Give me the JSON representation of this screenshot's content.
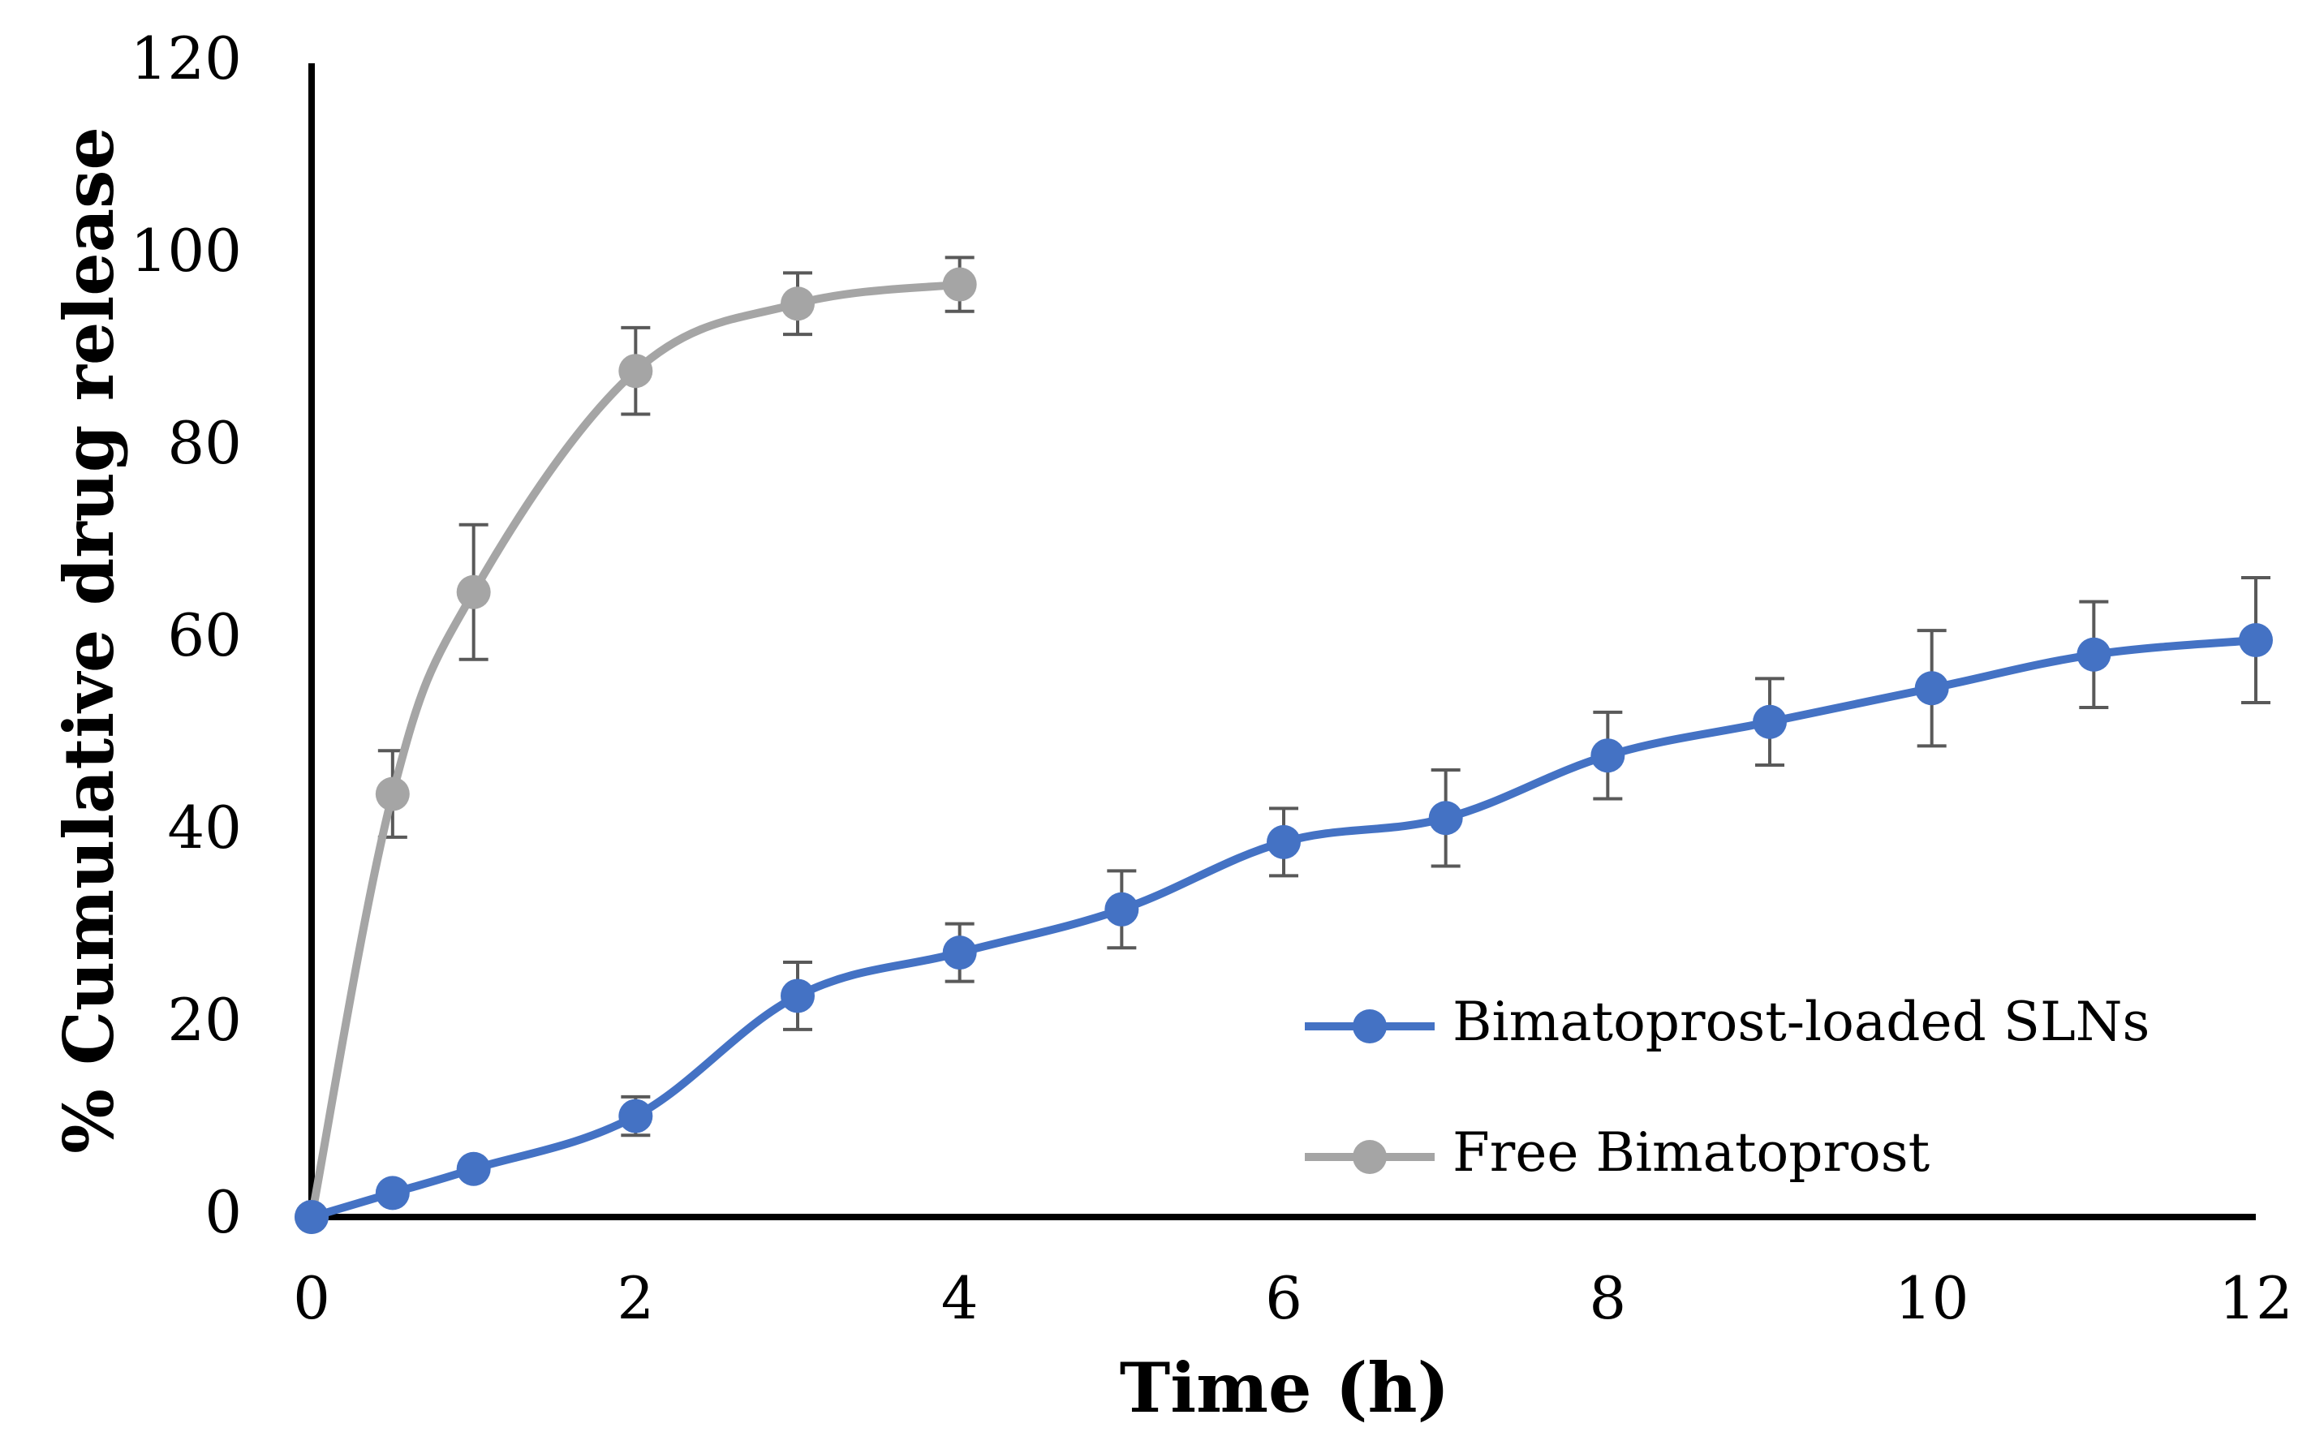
{
  "chart_data": {
    "type": "line",
    "title": "",
    "xlabel": "Time (h)",
    "ylabel": "% Cumulative drug release",
    "xlim": [
      0,
      12
    ],
    "ylim": [
      0,
      120
    ],
    "xticks": [
      0,
      2,
      4,
      6,
      8,
      10,
      12
    ],
    "yticks": [
      0,
      20,
      40,
      60,
      80,
      100,
      120
    ],
    "grid": false,
    "legend_position": "bottom-right",
    "series": [
      {
        "name": "Bimatoprost-loaded SLNs",
        "color": "#4472C4",
        "x": [
          0,
          0.5,
          1,
          2,
          3,
          4,
          5,
          6,
          7,
          8,
          9,
          10,
          11,
          12
        ],
        "y": [
          0,
          2.5,
          5,
          10.5,
          23,
          27.5,
          32,
          39,
          41.5,
          48,
          51.5,
          55,
          58.5,
          60
        ],
        "error": [
          0,
          0,
          0,
          2,
          3.5,
          3,
          4,
          3.5,
          5,
          4.5,
          4.5,
          6,
          5.5,
          6.5
        ]
      },
      {
        "name": "Free Bimatoprost",
        "color": "#A5A5A5",
        "x": [
          0,
          0.5,
          1,
          2,
          3,
          4
        ],
        "y": [
          0,
          44,
          65,
          88,
          95,
          97
        ],
        "error": [
          0,
          4.5,
          7,
          4.5,
          3.2,
          2.8
        ]
      }
    ]
  }
}
